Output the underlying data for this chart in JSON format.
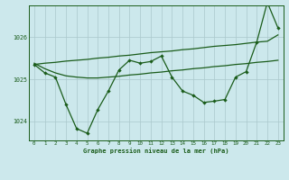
{
  "background_color": "#cce8ec",
  "grid_color": "#aac8cc",
  "line_color": "#1a5c1a",
  "xlabel": "Graphe pression niveau de la mer (hPa)",
  "xlim": [
    -0.5,
    23.5
  ],
  "ylim": [
    1023.55,
    1026.75
  ],
  "yticks": [
    1024,
    1025,
    1026
  ],
  "x_hours": [
    0,
    1,
    2,
    3,
    4,
    5,
    6,
    7,
    8,
    9,
    10,
    11,
    12,
    13,
    14,
    15,
    16,
    17,
    18,
    19,
    20,
    21,
    22,
    23
  ],
  "line_marker_y": [
    1025.35,
    1025.15,
    1025.05,
    1024.4,
    1023.83,
    1023.72,
    1024.28,
    1024.72,
    1025.22,
    1025.45,
    1025.38,
    1025.42,
    1025.55,
    1025.05,
    1024.72,
    1024.62,
    1024.45,
    1024.48,
    1024.52,
    1025.05,
    1025.18,
    1025.88,
    1026.82,
    1026.22
  ],
  "line_smooth1_y": [
    1025.35,
    1025.38,
    1025.4,
    1025.43,
    1025.45,
    1025.47,
    1025.5,
    1025.52,
    1025.55,
    1025.57,
    1025.6,
    1025.63,
    1025.65,
    1025.67,
    1025.7,
    1025.72,
    1025.75,
    1025.78,
    1025.8,
    1025.82,
    1025.85,
    1025.88,
    1025.9,
    1026.05
  ],
  "line_smooth2_y": [
    1025.38,
    1025.25,
    1025.15,
    1025.08,
    1025.05,
    1025.03,
    1025.03,
    1025.05,
    1025.07,
    1025.1,
    1025.12,
    1025.15,
    1025.17,
    1025.2,
    1025.22,
    1025.25,
    1025.27,
    1025.3,
    1025.32,
    1025.35,
    1025.37,
    1025.4,
    1025.42,
    1025.45
  ]
}
